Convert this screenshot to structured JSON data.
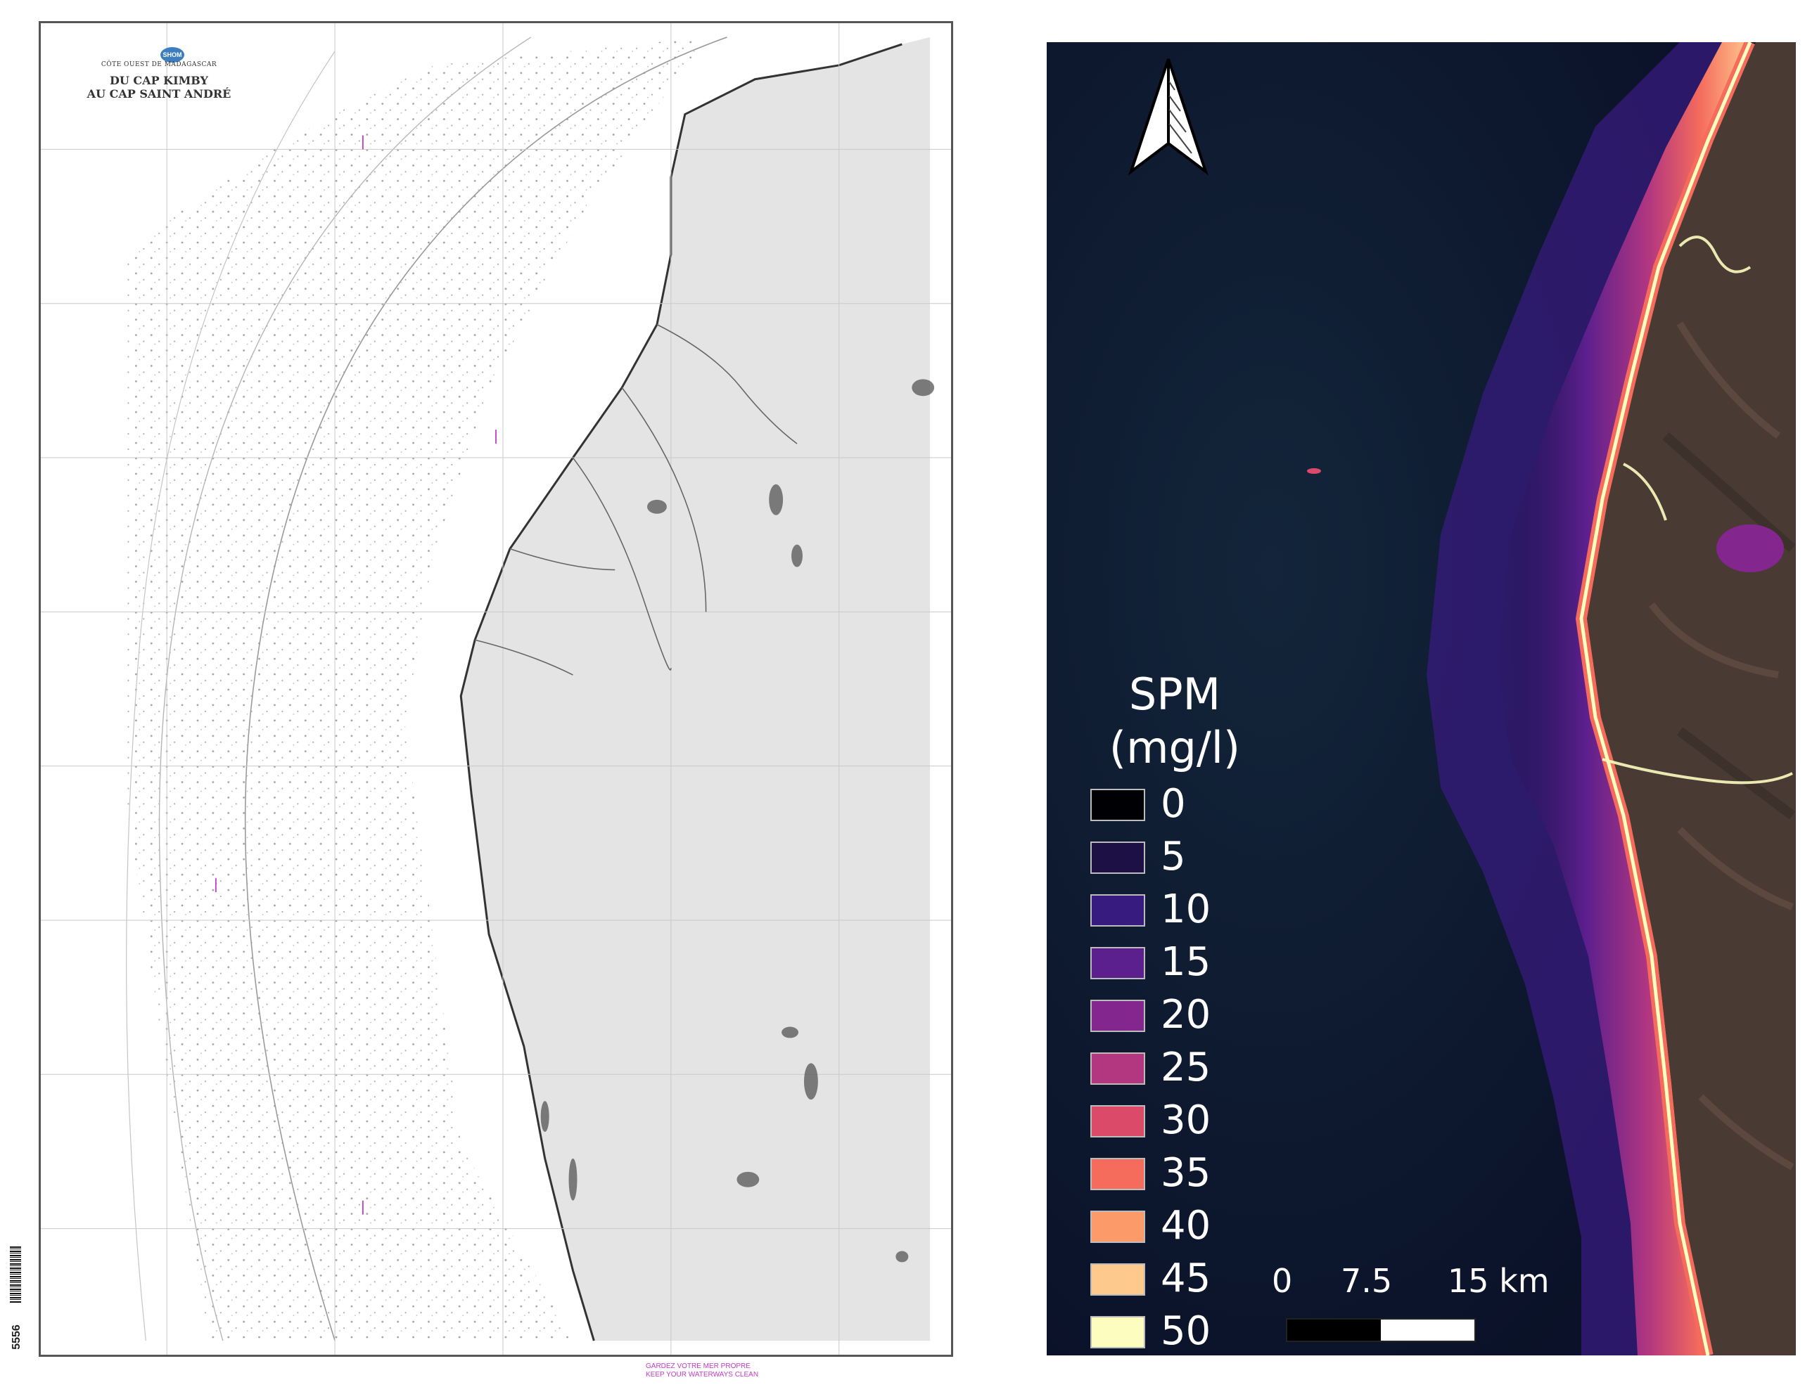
{
  "chart": {
    "kicker": "CÔTE OUEST DE MADAGASCAR",
    "title_line1": "DU CAP KIMBY",
    "title_line2": "AU CAP SAINT ANDRÉ",
    "logo_text": "SHOM",
    "chart_number": "5556",
    "footer_line1": "GARDEZ VOTRE MER PROPRE",
    "footer_line2": "KEEP YOUR WATERWAYS CLEAN"
  },
  "spm_map": {
    "legend_title_line1": "SPM",
    "legend_title_line2": "(mg/l)",
    "legend": [
      {
        "label": "0",
        "color": "#000004"
      },
      {
        "label": "5",
        "color": "#1c1044"
      },
      {
        "label": "10",
        "color": "#371b7e"
      },
      {
        "label": "15",
        "color": "#5c1f8e"
      },
      {
        "label": "20",
        "color": "#83268e"
      },
      {
        "label": "25",
        "color": "#b23680"
      },
      {
        "label": "30",
        "color": "#dc4a6a"
      },
      {
        "label": "35",
        "color": "#f56b5c"
      },
      {
        "label": "40",
        "color": "#fd9a6a"
      },
      {
        "label": "45",
        "color": "#fec98d"
      },
      {
        "label": "50",
        "color": "#fcfdbf"
      }
    ],
    "scale": {
      "label_0": "0",
      "label_mid": "7.5",
      "label_end": "15 km"
    },
    "colors": {
      "water": "#0d1530",
      "land": "#4a3a34",
      "plume_edge": "#f56b5c",
      "plume_core": "#fcfdbf"
    }
  }
}
